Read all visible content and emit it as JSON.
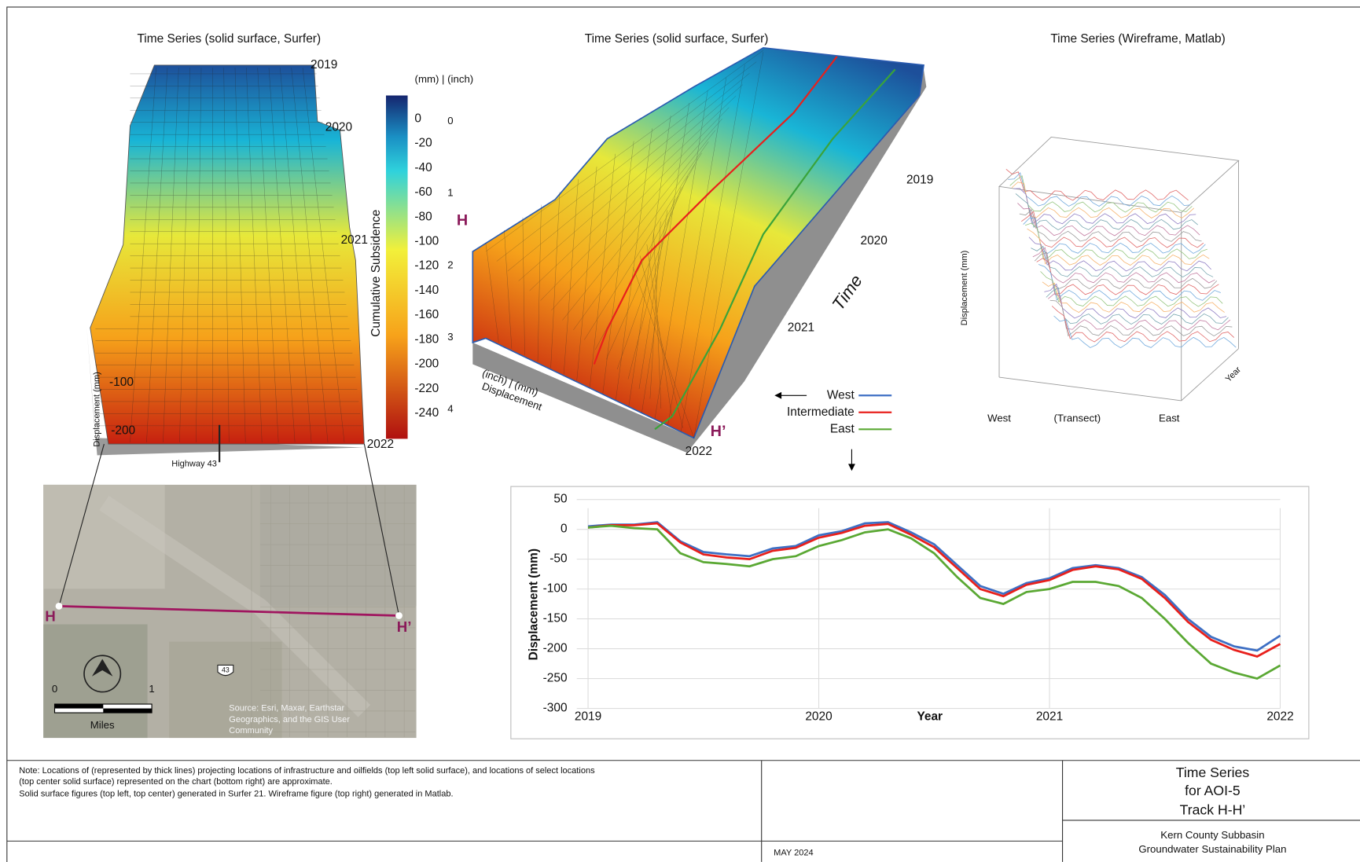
{
  "panels": {
    "left_title": "Time Series (solid surface, Surfer)",
    "center_title": "Time Series (solid surface, Surfer)",
    "right_title": "Time Series (Wireframe, Matlab)"
  },
  "left_surface": {
    "years": [
      "2019",
      "2020",
      "2021",
      "2022"
    ],
    "axis_label": "Displacement (mm)",
    "ticks": [
      "-100",
      "-200"
    ],
    "annotation": "Highway 43"
  },
  "colorbar": {
    "units": "(mm) | (inch)",
    "label": "Cumulative Subsidence",
    "mm_ticks": [
      "0",
      "-20",
      "-40",
      "-60",
      "-80",
      "-100",
      "-120",
      "-140",
      "-160",
      "-180",
      "-200",
      "-220",
      "-240"
    ],
    "inch_ticks": [
      "0",
      "1",
      "2",
      "3",
      "4"
    ]
  },
  "center_surface": {
    "years": [
      "2019",
      "2020",
      "2021",
      "2022"
    ],
    "time_label": "Time",
    "start": "H",
    "end": "H’",
    "axis_label_1": "(inch) | (mm)",
    "axis_label_2": "Displacement"
  },
  "wireframe": {
    "y_label": "Displacement (mm)",
    "x_labels": [
      "West",
      "(Transect)",
      "East"
    ],
    "year_label": "Year"
  },
  "map": {
    "start": "H",
    "end": "H’",
    "scale": [
      "0",
      "1"
    ],
    "scale_unit": "Miles",
    "route": "43",
    "source": [
      "Source: Esri, Maxar, Earthstar",
      "Geographics, and the GIS User",
      "Community"
    ]
  },
  "chart_data": {
    "type": "line",
    "xlabel": "Year",
    "ylabel": "Displacement (mm)",
    "x": [
      2019,
      2019.1,
      2019.2,
      2019.3,
      2019.4,
      2019.5,
      2019.6,
      2019.7,
      2019.8,
      2019.9,
      2020,
      2020.1,
      2020.2,
      2020.3,
      2020.4,
      2020.5,
      2020.6,
      2020.7,
      2020.8,
      2020.9,
      2021,
      2021.1,
      2021.2,
      2021.3,
      2021.4,
      2021.5,
      2021.6,
      2021.7,
      2021.8,
      2021.9,
      2022
    ],
    "series": [
      {
        "name": "West",
        "color": "#3d6fc4",
        "values": [
          5,
          8,
          8,
          12,
          -20,
          -38,
          -42,
          -45,
          -32,
          -28,
          -10,
          -3,
          10,
          12,
          -5,
          -25,
          -60,
          -95,
          -108,
          -90,
          -82,
          -65,
          -60,
          -65,
          -80,
          -110,
          -150,
          -180,
          -196,
          -203,
          -178
        ]
      },
      {
        "name": "Intermediate",
        "color": "#e8201c",
        "values": [
          3,
          7,
          7,
          10,
          -22,
          -42,
          -47,
          -50,
          -36,
          -31,
          -14,
          -6,
          6,
          9,
          -9,
          -30,
          -65,
          -100,
          -112,
          -93,
          -85,
          -68,
          -62,
          -67,
          -83,
          -115,
          -155,
          -185,
          -202,
          -213,
          -192
        ]
      },
      {
        "name": "East",
        "color": "#5aa833",
        "values": [
          3,
          6,
          2,
          0,
          -40,
          -55,
          -58,
          -62,
          -50,
          -45,
          -28,
          -18,
          -5,
          0,
          -15,
          -40,
          -80,
          -115,
          -125,
          -105,
          -100,
          -88,
          -88,
          -95,
          -115,
          -150,
          -190,
          -225,
          -240,
          -250,
          -228
        ]
      }
    ],
    "xlim": [
      2019,
      2022
    ],
    "xticks": [
      2019,
      2020,
      2021,
      2022
    ],
    "ylim": [
      -300,
      50
    ],
    "yticks": [
      50,
      0,
      -50,
      -100,
      -150,
      -200,
      -250,
      -300
    ],
    "grid": true
  },
  "notes": [
    "Note: Locations of (represented by thick lines) projecting locations of infrastructure and oilfields (top left solid surface), and locations of select locations",
    "(top center solid surface) represented on the chart (bottom right) are approximate.",
    "Solid surface figures (top left, top center) generated in Surfer 21. Wireframe figure (top right) generated in Matlab."
  ],
  "date": "MAY 2024",
  "title_block": {
    "title": [
      "Time Series",
      "for AOI-5",
      "Track H-H’"
    ],
    "org": [
      "Kern County Subbasin",
      "Groundwater Sustainability Plan"
    ]
  }
}
